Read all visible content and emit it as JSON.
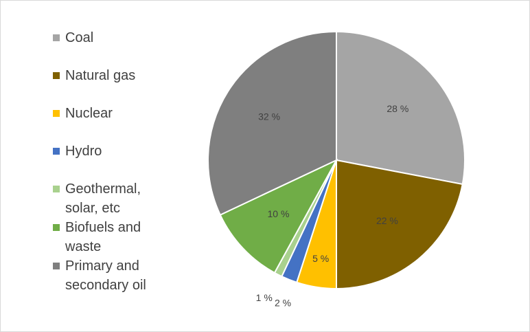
{
  "chart_data": {
    "type": "pie",
    "title": "",
    "categories": [
      "Coal",
      "Natural gas",
      "Nuclear",
      "Hydro",
      "Geothermal, solar, etc",
      "Biofuels and waste",
      "Primary and secondary oil"
    ],
    "legend_labels": [
      "Coal",
      "Natural gas",
      "Nuclear",
      "Hydro",
      "Geothermal,\nsolar, etc",
      "Biofuels and\nwaste",
      "Primary and\nsecondary oil"
    ],
    "values": [
      28,
      22,
      5,
      2,
      1,
      10,
      32
    ],
    "data_labels": [
      "28 %",
      "22 %",
      "5 %",
      "2 %",
      "1 %",
      "10 %",
      "32 %"
    ],
    "colors": [
      "#a5a5a5",
      "#7f6000",
      "#ffc000",
      "#4472c4",
      "#a9d18e",
      "#70ad47",
      "#7f7f7f"
    ],
    "legend_position": "left",
    "start_angle_deg": 0,
    "direction": "clockwise"
  }
}
